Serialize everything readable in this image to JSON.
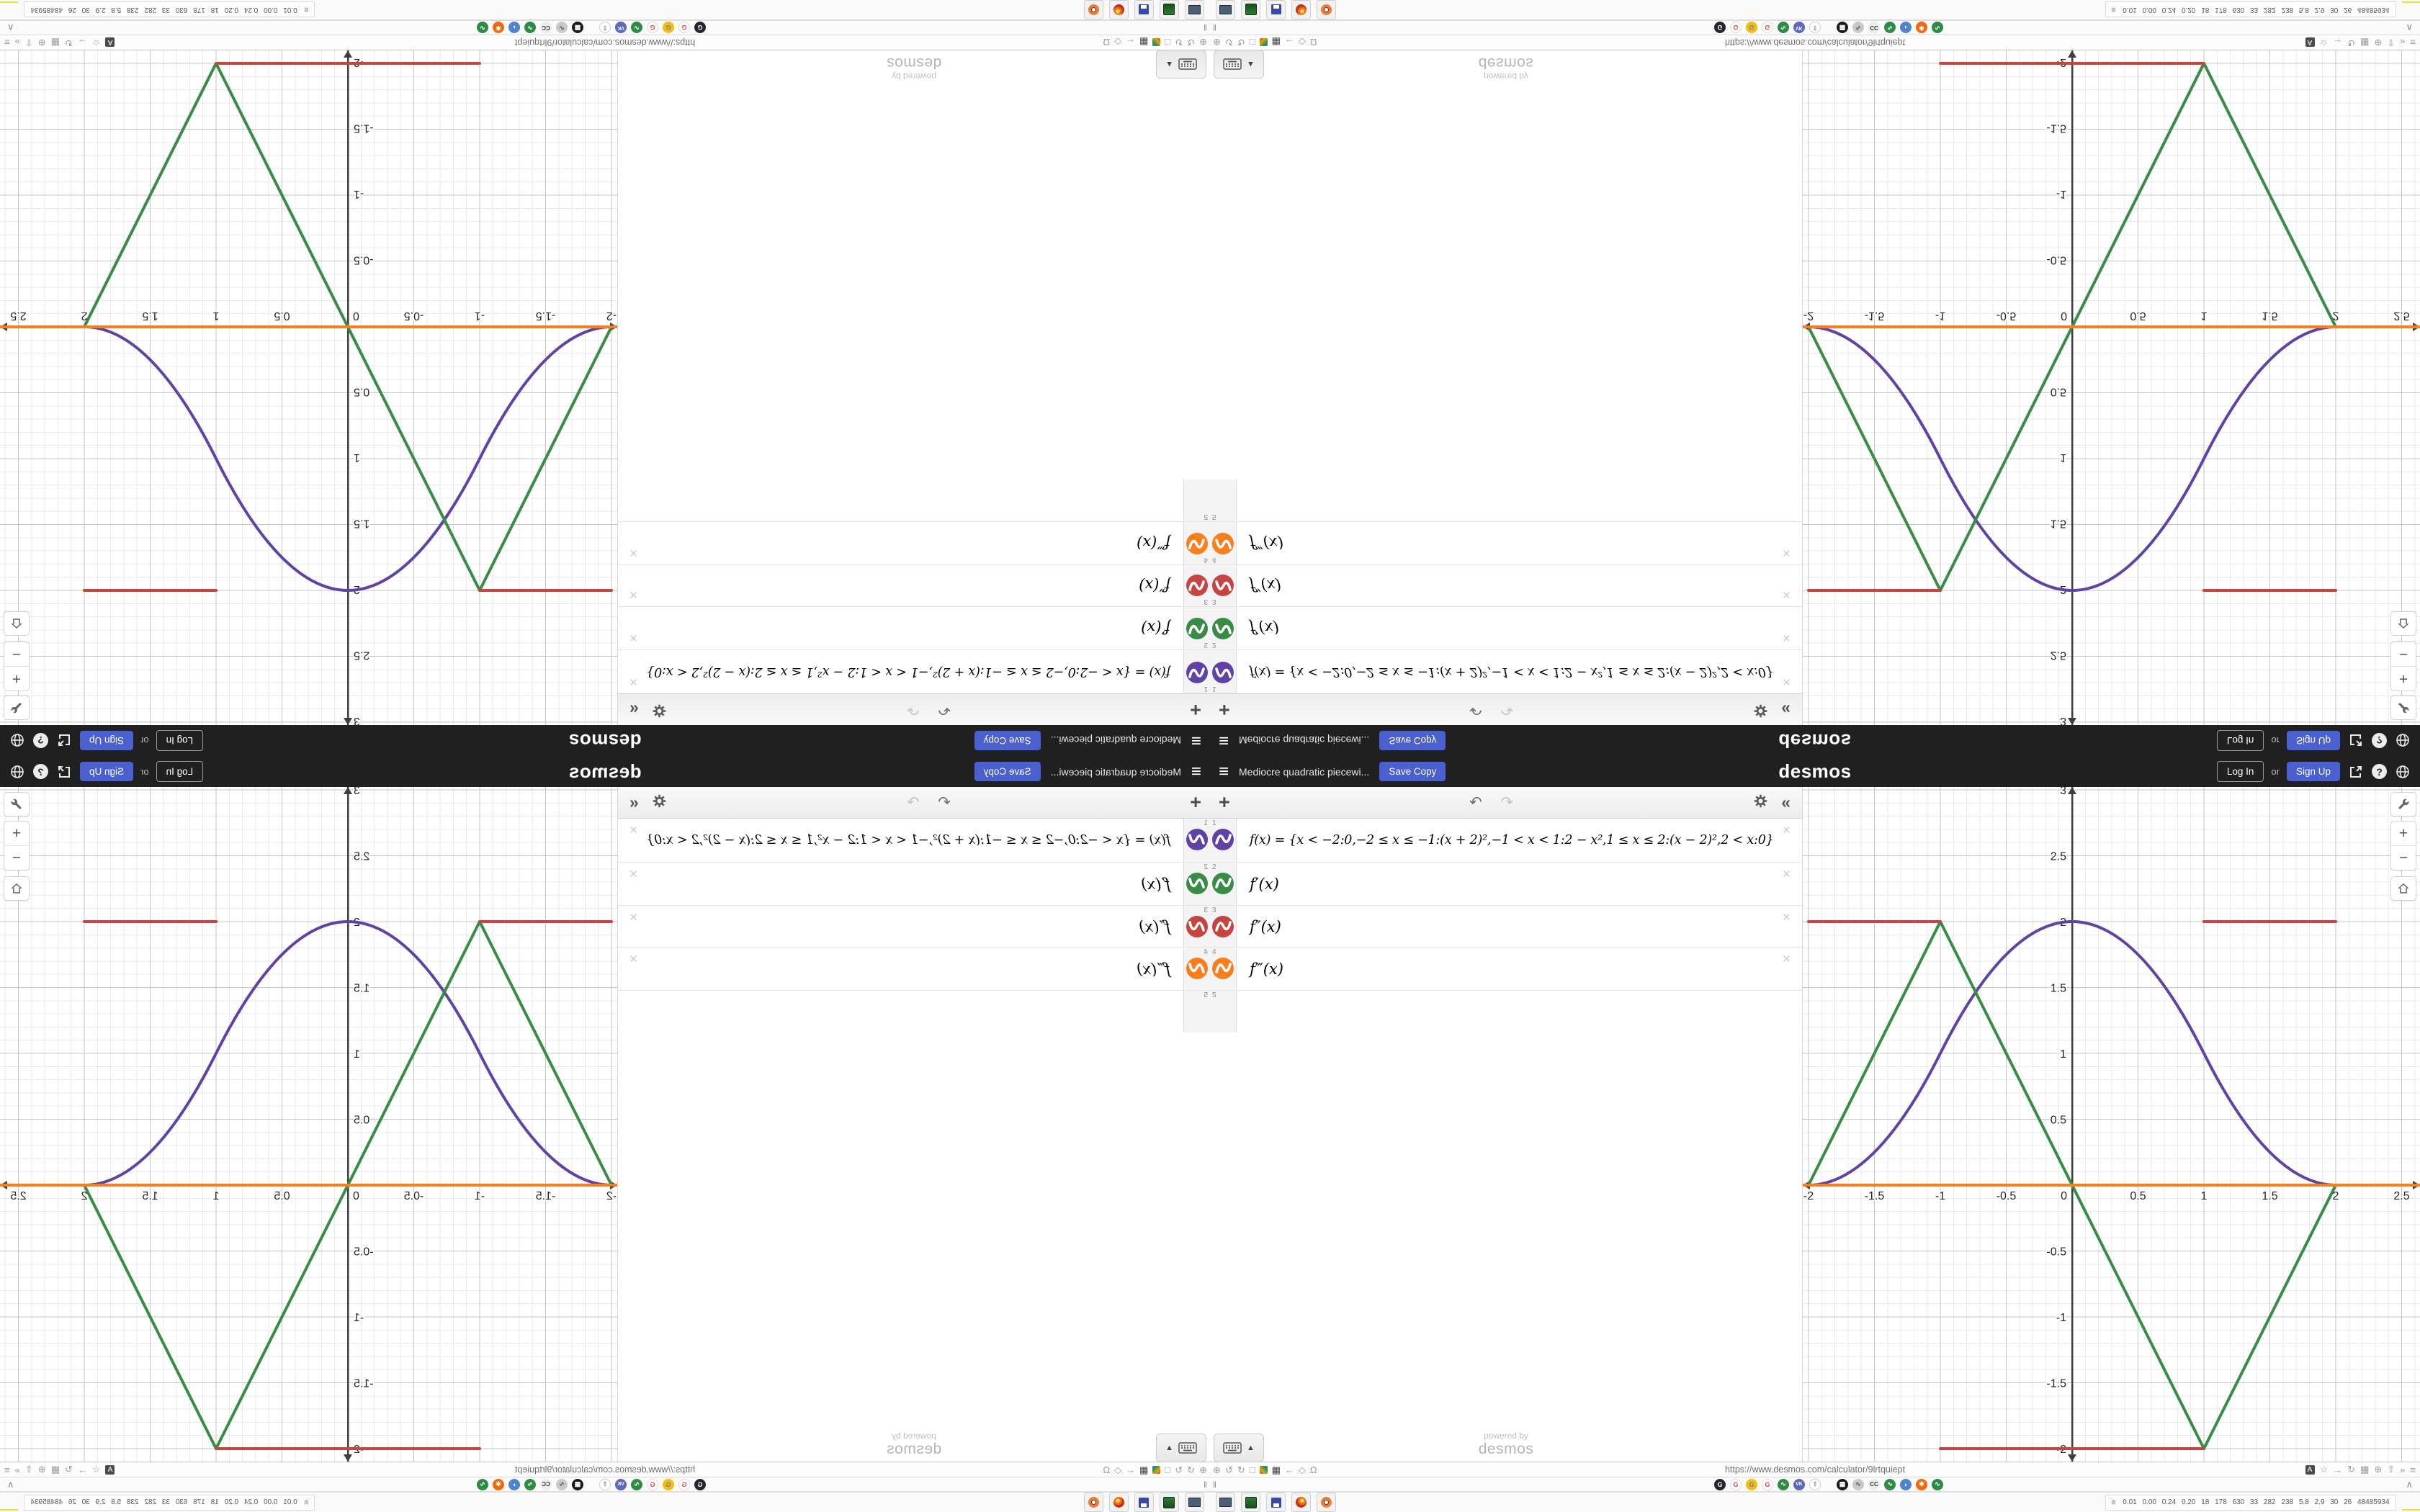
{
  "header": {
    "menu_icon": "≡",
    "title": "Mediocre quadratic piecewi...",
    "save_copy_label": "Save Copy",
    "logo_text": "desmos",
    "login_label": "Log In",
    "or_label": "or",
    "signup_label": "Sign Up",
    "help_label": "?"
  },
  "toolbar": {
    "add_label": "+",
    "undo_icon": "↶",
    "redo_icon": "↷",
    "collapse_icon": "«"
  },
  "expressions": [
    {
      "index": "1",
      "color": "#6042a6",
      "latex": "f(x) = {x < −2:0,−2 ≤ x ≤ −1:(x + 2)²,−1 < x < 1:2 − x²,1 ≤ x ≤ 2:(x − 2)²,2 < x:0}"
    },
    {
      "index": "2",
      "color": "#388c46",
      "latex": "f′(x)"
    },
    {
      "index": "3",
      "color": "#c74440",
      "latex": "f″(x)"
    },
    {
      "index": "4",
      "color": "#fa7e19",
      "latex": "f‴(x)"
    }
  ],
  "next_row_index": "5",
  "delete_icon": "×",
  "keypad": {
    "toggle_arrow": "▲"
  },
  "watermark": {
    "powered_by": "powered by",
    "brand": "desmos"
  },
  "graph_controls": {
    "zoom_in": "+",
    "zoom_out": "−"
  },
  "urlbar": {
    "url": "https://www.desmos.com/calculator/9lrtquiept",
    "left_icons": [
      "⊕",
      "↺",
      "↻",
      "□",
      "",
      "▦",
      "←",
      "◇",
      "Ω"
    ],
    "right_icons": [
      "A",
      "☆",
      "→",
      "↻",
      "▦",
      "⊕",
      "⇧",
      "»",
      "≡"
    ]
  },
  "tabstrip": {
    "pin_icon": "‖",
    "favicons": [
      "G",
      "G",
      "G",
      "G",
      "∿",
      "VK",
      "⇧",
      "▦",
      "∿",
      "CC",
      "∿",
      "◗",
      "✱",
      "∿"
    ],
    "collapse_icon": "∧"
  },
  "taskbar": {
    "apps": [
      "monitor-app",
      "green-device-app",
      "floppy-64-app",
      "firefox",
      "blender"
    ],
    "tray_chevrons": "«",
    "tray_stats": "0.01 0.00 0.24 0.20 18 178 630 33 282 238 5.8 2.9 30 26 48485934"
  },
  "colors": {
    "accent_blue": "#4a5fd0",
    "header_bg": "#202020",
    "curve_purple": "#6042a6",
    "curve_green": "#388c46",
    "curve_red": "#c74440",
    "curve_orange": "#fa7e19"
  },
  "chart_data": {
    "type": "line",
    "title": "Mediocre quadratic piecewise function and derivatives",
    "xlim": [
      -2.0437,
      2.6393
    ],
    "ylim": [
      -2.0984,
      3.0219
    ],
    "minor_step": 0.1,
    "major_step": 0.5,
    "grid": true,
    "x_ticks": [
      -2,
      -1.5,
      -1,
      -0.5,
      0,
      0.5,
      1,
      1.5,
      2,
      2.5
    ],
    "y_ticks": [
      3,
      2.5,
      2,
      1.5,
      1,
      0.5,
      -0.5,
      -1,
      -1.5,
      -2
    ],
    "series": [
      {
        "name": "f(x)",
        "color": "#6042a6",
        "path": [
          [
            "M",
            -2.0437,
            0
          ],
          [
            "L",
            -2,
            0
          ],
          [
            "Q",
            -1.5,
            0,
            -1,
            1
          ],
          [
            "Q",
            0,
            3,
            1,
            1
          ],
          [
            "Q",
            1.5,
            0,
            2,
            0
          ],
          [
            "L",
            2.6393,
            0
          ]
        ]
      },
      {
        "name": "f'(x)",
        "color": "#388c46",
        "path": [
          [
            "M",
            -2.0437,
            0
          ],
          [
            "L",
            -2,
            0
          ],
          [
            "L",
            -1,
            2
          ],
          [
            "L",
            1,
            -2
          ],
          [
            "L",
            2,
            0
          ],
          [
            "L",
            2.6393,
            0
          ]
        ]
      },
      {
        "name": "f''(x)",
        "color": "#c74440",
        "path": [
          [
            "M",
            -2.0437,
            0
          ],
          [
            "L",
            -2,
            0
          ],
          [
            "M",
            -2,
            2
          ],
          [
            "L",
            -1,
            2
          ],
          [
            "M",
            -1,
            -2
          ],
          [
            "L",
            1,
            -2
          ],
          [
            "M",
            1,
            2
          ],
          [
            "L",
            2,
            2
          ],
          [
            "M",
            2,
            0
          ],
          [
            "L",
            2.6393,
            0
          ]
        ]
      },
      {
        "name": "f'''(x)",
        "color": "#fa7e19",
        "path": [
          [
            "M",
            -2.0437,
            0
          ],
          [
            "L",
            2.6393,
            0
          ]
        ]
      }
    ]
  }
}
